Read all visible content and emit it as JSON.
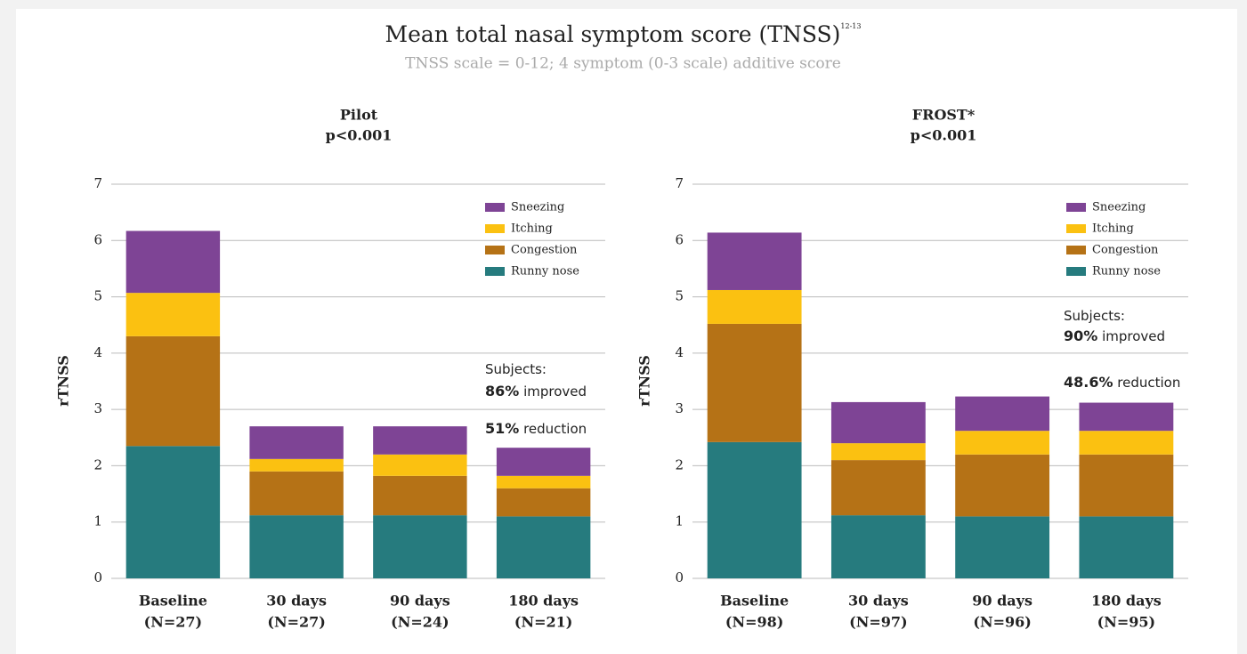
{
  "header": {
    "title": "Mean total nasal symptom score (TNSS)",
    "title_superscript": "12-13",
    "subtitle": "TNSS scale = 0-12; 4 symptom (0-3 scale) additive score"
  },
  "chart_data": [
    {
      "type": "stacked_bar",
      "title": "Pilot",
      "subtitle": "p<0.001",
      "ylabel": "rTNSS",
      "categories": [
        "Baseline",
        "30 days",
        "90 days",
        "180 days"
      ],
      "sample_sizes": [
        "(N=27)",
        "(N=27)",
        "(N=24)",
        "(N=21)"
      ],
      "ylim": [
        0,
        7
      ],
      "yticks": [
        0,
        1,
        2,
        3,
        4,
        5,
        6,
        7
      ],
      "grid": true,
      "legend": "upper right",
      "series": [
        {
          "name": "Runny nose",
          "color": "#267b7e",
          "values": [
            2.35,
            1.12,
            1.12,
            1.1
          ]
        },
        {
          "name": "Congestion",
          "color": "#b57216",
          "values": [
            1.95,
            0.78,
            0.7,
            0.5
          ]
        },
        {
          "name": "Itching",
          "color": "#fbc111",
          "values": [
            0.77,
            0.22,
            0.38,
            0.22
          ]
        },
        {
          "name": "Sneezing",
          "color": "#7e4495",
          "values": [
            1.1,
            0.58,
            0.5,
            0.5
          ]
        }
      ],
      "annotations": [
        [
          {
            "text": "Subjects:"
          }
        ],
        [
          {
            "text": "86%",
            "bold": true
          },
          {
            "text": " improved"
          }
        ],
        [
          {
            "text": "51%",
            "bold": true
          },
          {
            "text": " reduction"
          }
        ]
      ]
    },
    {
      "type": "stacked_bar",
      "title": "FROST*",
      "subtitle": "p<0.001",
      "ylabel": "rTNSS",
      "categories": [
        "Baseline",
        "30 days",
        "90 days",
        "180 days"
      ],
      "sample_sizes": [
        "(N=98)",
        "(N=97)",
        "(N=96)",
        "(N=95)"
      ],
      "ylim": [
        0,
        7
      ],
      "yticks": [
        0,
        1,
        2,
        3,
        4,
        5,
        6,
        7
      ],
      "grid": true,
      "legend": "upper right",
      "series": [
        {
          "name": "Runny nose",
          "color": "#267b7e",
          "values": [
            2.42,
            1.12,
            1.1,
            1.1
          ]
        },
        {
          "name": "Congestion",
          "color": "#b57216",
          "values": [
            2.1,
            0.98,
            1.1,
            1.1
          ]
        },
        {
          "name": "Itching",
          "color": "#fbc111",
          "values": [
            0.6,
            0.3,
            0.42,
            0.42
          ]
        },
        {
          "name": "Sneezing",
          "color": "#7e4495",
          "values": [
            1.02,
            0.73,
            0.61,
            0.5
          ]
        }
      ],
      "annotations": [
        [
          {
            "text": "Subjects:"
          }
        ],
        [
          {
            "text": "90%",
            "bold": true
          },
          {
            "text": " improved"
          }
        ],
        [
          {
            "text": "48.6%",
            "bold": true
          },
          {
            "text": " reduction"
          }
        ]
      ]
    }
  ]
}
